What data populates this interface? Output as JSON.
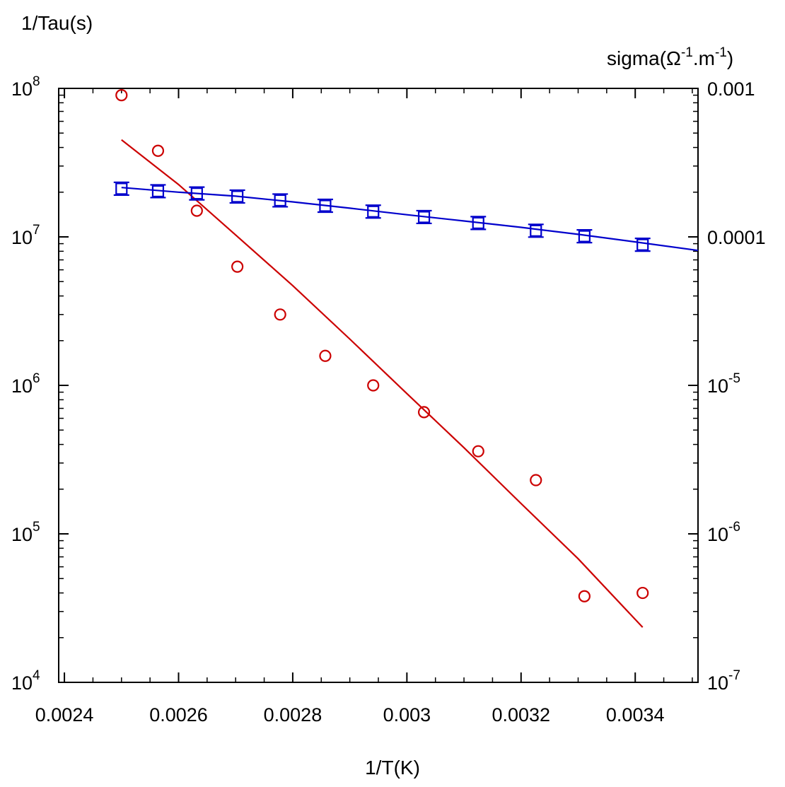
{
  "chart_data": {
    "type": "scatter",
    "xlabel": "1/T(K)",
    "ylabel_left": "1/Tau(s)",
    "ylabel_right": {
      "base": "sigma(",
      "omega": "Ω",
      "exp1": "-1",
      "mid": ".m",
      "exp2": "-1",
      "end": ")"
    },
    "xlim": [
      0.00239,
      0.00351
    ],
    "ylim_left": [
      10000,
      100000000
    ],
    "ylim_right": [
      1e-07,
      0.001
    ],
    "yscale": "log",
    "grid": false,
    "x_ticks": [
      {
        "value": 0.0024,
        "label": "0.0024"
      },
      {
        "value": 0.0026,
        "label": "0.0026"
      },
      {
        "value": 0.0028,
        "label": "0.0028"
      },
      {
        "value": 0.003,
        "label": "0.003"
      },
      {
        "value": 0.0032,
        "label": "0.0032"
      },
      {
        "value": 0.0034,
        "label": "0.0034"
      }
    ],
    "y_left_ticks": [
      {
        "exp": 4,
        "base": "10",
        "sup": "4"
      },
      {
        "exp": 5,
        "base": "10",
        "sup": "5"
      },
      {
        "exp": 6,
        "base": "10",
        "sup": "6"
      },
      {
        "exp": 7,
        "base": "10",
        "sup": "7"
      },
      {
        "exp": 8,
        "base": "10",
        "sup": "8"
      }
    ],
    "y_right_ticks": [
      {
        "exp": -7,
        "base": "10",
        "sup": "-7",
        "text": ""
      },
      {
        "exp": -6,
        "base": "10",
        "sup": "-6",
        "text": ""
      },
      {
        "exp": -5,
        "base": "10",
        "sup": "-5",
        "text": ""
      },
      {
        "exp": -4,
        "base": "",
        "sup": "",
        "text": "0.0001"
      },
      {
        "exp": -3,
        "base": "",
        "sup": "",
        "text": "0.001"
      }
    ],
    "series": [
      {
        "axis": "left",
        "color": "#cc0000",
        "marker": "circle",
        "x": [
          0.0025,
          0.002564,
          0.002632,
          0.002703,
          0.002778,
          0.002857,
          0.002941,
          0.00303,
          0.003125,
          0.003226,
          0.003311,
          0.003413
        ],
        "y": [
          90000000,
          38000000,
          15000000,
          6300000,
          3000000,
          1580000,
          1000000,
          660000,
          360000,
          230000,
          38000,
          40000
        ]
      },
      {
        "axis": "left",
        "color": "#cc0000",
        "marker": "line",
        "x": [
          0.0025,
          0.0026,
          0.0027,
          0.0028,
          0.0029,
          0.003,
          0.0031,
          0.0032,
          0.0033,
          0.003413
        ],
        "y": [
          45000000,
          22500000,
          10300000,
          4700000,
          2050000,
          880000,
          380000,
          160000,
          68000,
          23500
        ]
      },
      {
        "axis": "right",
        "color": "#0000cc",
        "marker": "square-errorbar",
        "x": [
          0.0025,
          0.002564,
          0.002632,
          0.002703,
          0.002778,
          0.002857,
          0.002941,
          0.00303,
          0.003125,
          0.003226,
          0.003311,
          0.003413
        ],
        "y": [
          0.000211,
          0.000203,
          0.000196,
          0.000187,
          0.000176,
          0.000162,
          0.000148,
          0.000136,
          0.000124,
          0.00011,
          0.000101,
          8.85e-05
        ]
      },
      {
        "axis": "right",
        "color": "#0000cc",
        "marker": "line",
        "x": [
          0.0025,
          0.0026,
          0.0027,
          0.0028,
          0.0029,
          0.003,
          0.0031,
          0.0032,
          0.0033,
          0.0034,
          0.00351
        ],
        "y": [
          0.000215,
          0.0002,
          0.000188,
          0.000172,
          0.000156,
          0.000141,
          0.000128,
          0.000116,
          0.000104,
          9.25e-05,
          8.1e-05
        ]
      }
    ]
  }
}
